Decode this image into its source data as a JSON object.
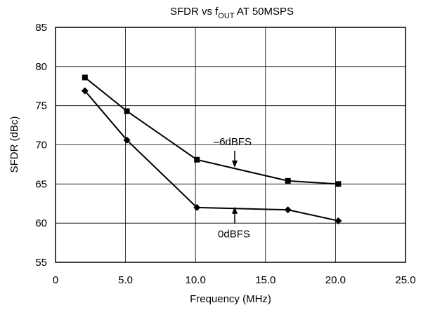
{
  "chart_data": {
    "type": "line",
    "title": {
      "main": "SFDR vs f",
      "sub": "OUT",
      "rest": " AT 50MSPS"
    },
    "xlabel": "Frequency (MHz)",
    "ylabel": "SFDR (dBc)",
    "xlim": [
      0,
      25
    ],
    "ylim": [
      55,
      85
    ],
    "xticks": [
      0,
      5,
      10,
      15,
      20,
      25
    ],
    "xtick_labels": [
      "0",
      "5.0",
      "10.0",
      "15.0",
      "20.0",
      "25.0"
    ],
    "yticks": [
      55,
      60,
      65,
      70,
      75,
      80,
      85
    ],
    "ytick_labels": [
      "55",
      "60",
      "65",
      "70",
      "75",
      "80",
      "85"
    ],
    "grid": true,
    "series": [
      {
        "name": "–6dBFS",
        "marker": "square",
        "color": "#000000",
        "x": [
          2.1,
          5.1,
          10.1,
          16.6,
          20.2
        ],
        "y": [
          78.6,
          74.3,
          68.1,
          65.4,
          65.0
        ]
      },
      {
        "name": "0dBFS",
        "marker": "diamond",
        "color": "#000000",
        "x": [
          2.1,
          5.1,
          10.1,
          16.6,
          20.2
        ],
        "y": [
          76.9,
          70.6,
          62.0,
          61.7,
          60.3
        ]
      }
    ],
    "annotations": [
      {
        "text": "–6dBFS",
        "arrow_to": [
          12.8,
          67.1
        ],
        "arrow_dir": "down"
      },
      {
        "text": "0dBFS",
        "arrow_to": [
          12.8,
          62.1
        ],
        "arrow_dir": "up"
      }
    ]
  }
}
